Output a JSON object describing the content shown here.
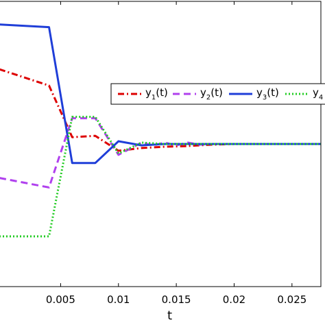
{
  "chart_data": {
    "type": "line",
    "title": "",
    "xlabel": "t",
    "ylabel": "",
    "xlim": [
      -0.0003,
      0.0275
    ],
    "ylim": [
      -1.05,
      1.05
    ],
    "x_ticks": [
      0.005,
      0.01,
      0.015,
      0.02,
      0.025
    ],
    "x_tick_labels": [
      "0.005",
      "0.01",
      "0.015",
      "0.02",
      "0.025"
    ],
    "grid": false,
    "legend_placement": "top-right",
    "series": [
      {
        "name": "y1(t)",
        "legend_main": "y",
        "legend_sub": "1",
        "legend_tail": "(t)",
        "color": "#dd0000",
        "style": "dashdot",
        "x": [
          -0.0003,
          0.004,
          0.006,
          0.008,
          0.01,
          0.012,
          0.014,
          0.016,
          0.018,
          0.02,
          0.0275
        ],
        "y": [
          0.55,
          0.43,
          0.05,
          0.06,
          -0.05,
          -0.03,
          -0.02,
          -0.015,
          -0.005,
          0.0,
          0.0
        ]
      },
      {
        "name": "y2(t)",
        "legend_main": "y",
        "legend_sub": "2",
        "legend_tail": "(t)",
        "color": "#b040ee",
        "style": "dashed",
        "x": [
          -0.0003,
          0.004,
          0.006,
          0.008,
          0.01,
          0.012,
          0.013,
          0.014,
          0.015,
          0.016,
          0.017,
          0.018,
          0.02,
          0.0275
        ],
        "y": [
          -0.25,
          -0.32,
          0.19,
          0.19,
          -0.08,
          0.01,
          -0.01,
          0.01,
          -0.01,
          0.01,
          -0.005,
          0.0,
          0.0,
          0.0
        ]
      },
      {
        "name": "y3(t)",
        "legend_main": "y",
        "legend_sub": "3",
        "legend_tail": "(t)",
        "color": "#1f3ed8",
        "style": "solid",
        "x": [
          -0.0003,
          0.004,
          0.006,
          0.008,
          0.01,
          0.012,
          0.014,
          0.02,
          0.0275
        ],
        "y": [
          0.88,
          0.86,
          -0.14,
          -0.14,
          0.02,
          -0.01,
          0.0,
          0.0,
          0.0
        ]
      },
      {
        "name": "y4",
        "legend_main": "y",
        "legend_sub": "4",
        "legend_tail": "",
        "color": "#22cc22",
        "style": "dotted",
        "x": [
          -0.0003,
          0.004,
          0.006,
          0.008,
          0.01,
          0.012,
          0.014,
          0.02,
          0.0275
        ],
        "y": [
          -0.68,
          -0.68,
          0.2,
          0.2,
          -0.07,
          0.01,
          0.0,
          0.0,
          0.0
        ]
      }
    ]
  }
}
